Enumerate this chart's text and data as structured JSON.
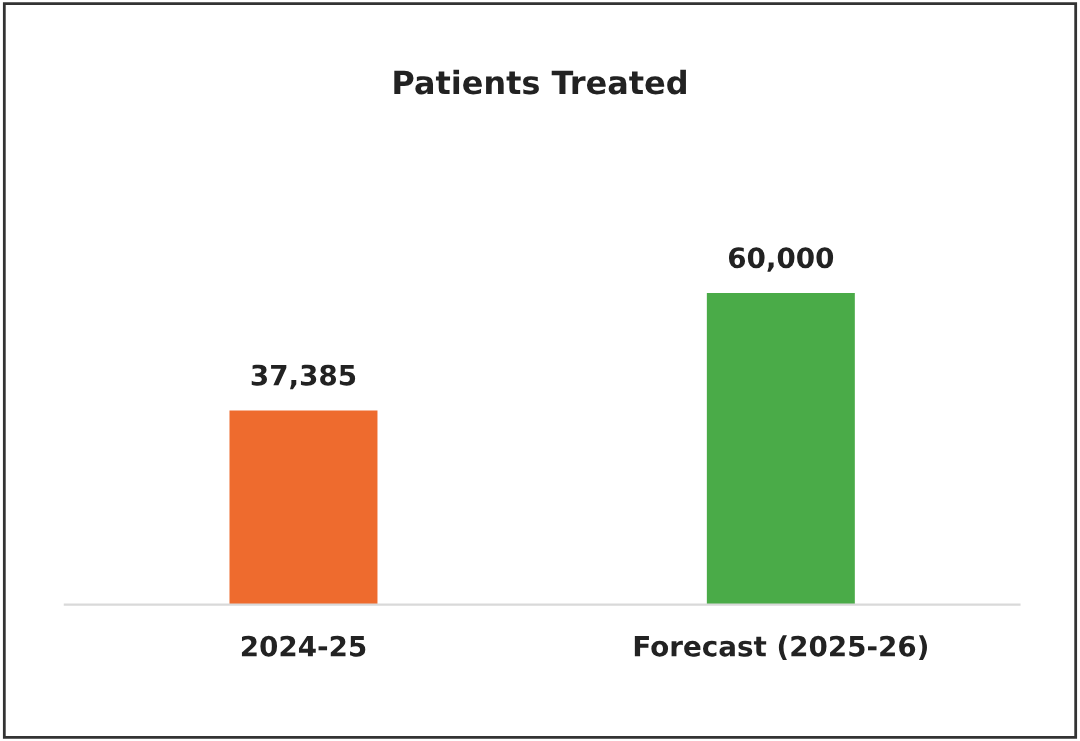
{
  "chart_data": {
    "type": "bar",
    "title": "Patients Treated",
    "categories": [
      "2024-25",
      "Forecast (2025-26)"
    ],
    "values": [
      37385,
      60000
    ],
    "colors": [
      "#ee6b2e",
      "#4aab48"
    ],
    "value_labels": [
      "37,385",
      "60,000"
    ],
    "tick_labels": "x",
    "grid": false,
    "legend": false
  }
}
